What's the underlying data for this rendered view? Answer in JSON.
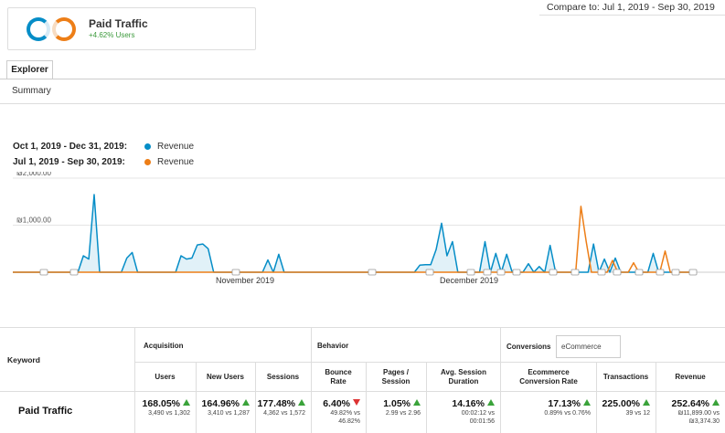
{
  "compare_text": "Compare to: Jul 1, 2019 - Sep 30, 2019",
  "segment": {
    "name": "Paid Traffic",
    "change": "+4.62% Users"
  },
  "tabs": {
    "explorer": "Explorer",
    "summary": "Summary"
  },
  "legend": [
    {
      "range": "Oct 1, 2019 - Dec 31, 2019:",
      "metric": "Revenue",
      "color": "#058dc7"
    },
    {
      "range": "Jul 1, 2019 - Sep 30, 2019:",
      "metric": "Revenue",
      "color": "#ed7e17"
    }
  ],
  "chart_data": {
    "type": "area",
    "y_ticks": [
      "₪2,000.00",
      "₪1,000.00"
    ],
    "ylim": [
      0,
      2000
    ],
    "x_labels": [
      "November 2019",
      "December 2019"
    ],
    "series": [
      {
        "name": "Revenue",
        "color": "#058dc7",
        "values": [
          0,
          0,
          0,
          0,
          0,
          0,
          0,
          0,
          0,
          0,
          0,
          0,
          0,
          350,
          280,
          1650,
          0,
          0,
          0,
          0,
          0,
          300,
          420,
          0,
          0,
          0,
          0,
          0,
          0,
          0,
          0,
          350,
          280,
          300,
          580,
          600,
          500,
          0,
          0,
          0,
          0,
          0,
          0,
          0,
          0,
          0,
          0,
          260,
          0,
          380,
          0,
          0,
          0,
          0,
          0,
          0,
          0,
          0,
          0,
          0,
          0,
          0,
          0,
          0,
          0,
          0,
          0,
          0,
          0,
          0,
          0,
          0,
          0,
          0,
          0,
          150,
          160,
          160,
          480,
          1040,
          350,
          650,
          0,
          0,
          0,
          0,
          0,
          650,
          0,
          400,
          0,
          380,
          0,
          0,
          0,
          180,
          0,
          120,
          0,
          570,
          0,
          0,
          0,
          0,
          0,
          0,
          0,
          600,
          0,
          280,
          0,
          300,
          0,
          0,
          0,
          0,
          0,
          0,
          400,
          0,
          0,
          0,
          0,
          0,
          0,
          0,
          0
        ]
      },
      {
        "name": "Revenue",
        "color": "#ed7e17",
        "values": [
          0,
          0,
          0,
          0,
          0,
          0,
          0,
          0,
          0,
          0,
          0,
          0,
          0,
          0,
          0,
          0,
          0,
          0,
          0,
          0,
          0,
          0,
          0,
          0,
          0,
          0,
          0,
          0,
          0,
          0,
          0,
          0,
          0,
          0,
          0,
          0,
          0,
          0,
          0,
          0,
          0,
          0,
          0,
          0,
          0,
          0,
          0,
          0,
          0,
          0,
          0,
          0,
          0,
          0,
          0,
          0,
          0,
          0,
          0,
          0,
          0,
          0,
          0,
          0,
          0,
          0,
          0,
          0,
          0,
          0,
          0,
          0,
          0,
          0,
          0,
          0,
          0,
          0,
          0,
          0,
          0,
          0,
          0,
          0,
          0,
          0,
          0,
          0,
          0,
          0,
          0,
          0,
          0,
          0,
          0,
          0,
          0,
          0,
          0,
          0,
          0,
          0,
          0,
          0,
          0,
          0,
          0,
          0,
          1400,
          650,
          0,
          0,
          0,
          0,
          250,
          0,
          0,
          0,
          200,
          0,
          0,
          0,
          0,
          0,
          450,
          0,
          0,
          0,
          0,
          0,
          0
        ]
      }
    ],
    "annotation_count": 17
  },
  "table": {
    "keyword_header": "Keyword",
    "sections": {
      "acquisition": "Acquisition",
      "behavior": "Behavior",
      "conversions": "Conversions",
      "conversions_select": "eCommerce"
    },
    "columns": [
      "Users",
      "New Users",
      "Sessions",
      "Bounce Rate",
      "Pages / Session",
      "Avg. Session Duration",
      "Ecommerce Conversion Rate",
      "Transactions",
      "Revenue"
    ],
    "row": {
      "label": "Paid Traffic",
      "cells": [
        {
          "value": "168.05%",
          "dir": "up",
          "sub": [
            "3,490 vs 1,302"
          ]
        },
        {
          "value": "164.96%",
          "dir": "up",
          "sub": [
            "3,410 vs 1,287"
          ]
        },
        {
          "value": "177.48%",
          "dir": "up",
          "sub": [
            "4,362 vs 1,572"
          ]
        },
        {
          "value": "6.40%",
          "dir": "down",
          "sub": [
            "49.82% vs",
            "46.82%"
          ]
        },
        {
          "value": "1.05%",
          "dir": "up",
          "sub": [
            "2.99 vs 2.96"
          ]
        },
        {
          "value": "14.16%",
          "dir": "up",
          "sub": [
            "00:02:12 vs",
            "00:01:56"
          ]
        },
        {
          "value": "17.13%",
          "dir": "up",
          "sub": [
            "0.89% vs 0.76%"
          ]
        },
        {
          "value": "225.00%",
          "dir": "up",
          "sub": [
            "39 vs 12"
          ]
        },
        {
          "value": "252.64%",
          "dir": "up",
          "sub": [
            "₪11,899.00 vs",
            "₪3,374.30"
          ]
        }
      ]
    }
  }
}
